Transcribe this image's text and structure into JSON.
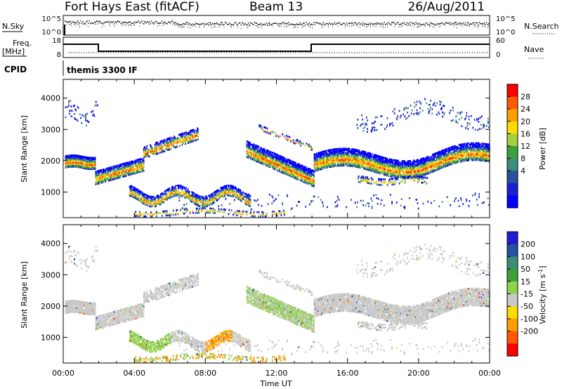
{
  "header": {
    "station": "Fort Hays East (fitACF)",
    "beam": "Beam 13",
    "date": "26/Aug/2011"
  },
  "strip_panels": {
    "noise_left_label": "N.Sky",
    "noise_right_label": "N.Search",
    "noise_ticks_left": [
      "10^5",
      "10^0"
    ],
    "noise_ticks_right": [
      "10^5",
      "10^0"
    ],
    "freq_label_top": "Freq.",
    "freq_label_unit": "[MHz]",
    "freq_ticks": [
      "18",
      "8"
    ],
    "nave_label": "Nave",
    "nave_ticks": [
      "60",
      "0"
    ],
    "cpid_label": "CPID",
    "cpid_value": "themis 3300 IF"
  },
  "chart_data": [
    {
      "type": "heatmap",
      "name": "power",
      "ylabel": "Slant Range [km]",
      "xlabel": "Time UT",
      "x_ticks": [
        "00:00",
        "04:00",
        "08:00",
        "12:00",
        "16:00",
        "20:00",
        "00:00"
      ],
      "y_ticks": [
        "1000",
        "2000",
        "3000",
        "4000"
      ],
      "colorbar": {
        "label": "Power [dB]",
        "ticks": [
          "28",
          "24",
          "20",
          "16",
          "12",
          "8",
          "4"
        ],
        "colors": [
          "#ff0000",
          "#ff5a00",
          "#ff9d00",
          "#ffdc00",
          "#a5d03c",
          "#3ca03c",
          "#3c8c78",
          "#2850a0",
          "#1e1ed2",
          "#0000ff"
        ]
      },
      "ylim": [
        180,
        4600
      ],
      "xlim_hours": [
        0,
        24
      ]
    },
    {
      "type": "heatmap",
      "name": "velocity",
      "ylabel": "Slant Range [km]",
      "xlabel": "Time UT",
      "x_ticks": [
        "00:00",
        "04:00",
        "08:00",
        "12:00",
        "16:00",
        "20:00",
        "00:00"
      ],
      "y_ticks": [
        "1000",
        "2000",
        "3000",
        "4000"
      ],
      "colorbar": {
        "label": "Velocity [m s^-1]",
        "ticks": [
          "200",
          "100",
          "50",
          "15",
          "-15",
          "-50",
          "-100",
          "-200"
        ],
        "colors": [
          "#1e1ed2",
          "#2850a0",
          "#3c8c78",
          "#3ca03c",
          "#8fd24f",
          "#c8c8c8",
          "#ffdc00",
          "#ff9d00",
          "#ff5a00",
          "#ff0000"
        ]
      },
      "ylim": [
        180,
        4600
      ],
      "xlim_hours": [
        0,
        24
      ]
    }
  ],
  "footer": {
    "xlabel": "Time UT"
  }
}
